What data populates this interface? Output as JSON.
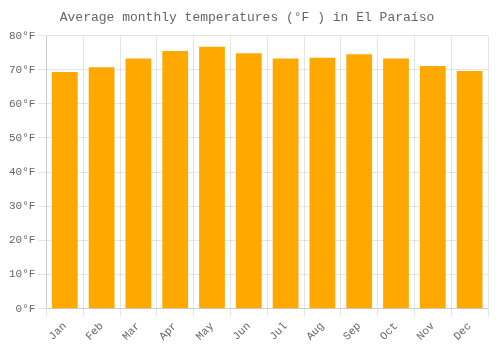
{
  "chart_data": {
    "type": "bar",
    "title": "Average monthly temperatures (°F ) in El Paraíso",
    "categories": [
      "Jan",
      "Feb",
      "Mar",
      "Apr",
      "May",
      "Jun",
      "Jul",
      "Aug",
      "Sep",
      "Oct",
      "Nov",
      "Dec"
    ],
    "values": [
      69.3,
      70.7,
      73.3,
      75.5,
      76.7,
      74.8,
      73.3,
      73.5,
      74.5,
      73.3,
      71.1,
      69.6
    ],
    "color": "#FFA800",
    "ylim": [
      0,
      80
    ],
    "yticks": [
      {
        "value": 0,
        "label": "0°F"
      },
      {
        "value": 10,
        "label": "10°F"
      },
      {
        "value": 20,
        "label": "20°F"
      },
      {
        "value": 30,
        "label": "30°F"
      },
      {
        "value": 40,
        "label": "40°F"
      },
      {
        "value": 50,
        "label": "50°F"
      },
      {
        "value": 60,
        "label": "60°F"
      },
      {
        "value": 70,
        "label": "70°F"
      },
      {
        "value": 80,
        "label": "80°F"
      }
    ],
    "grid": true
  }
}
